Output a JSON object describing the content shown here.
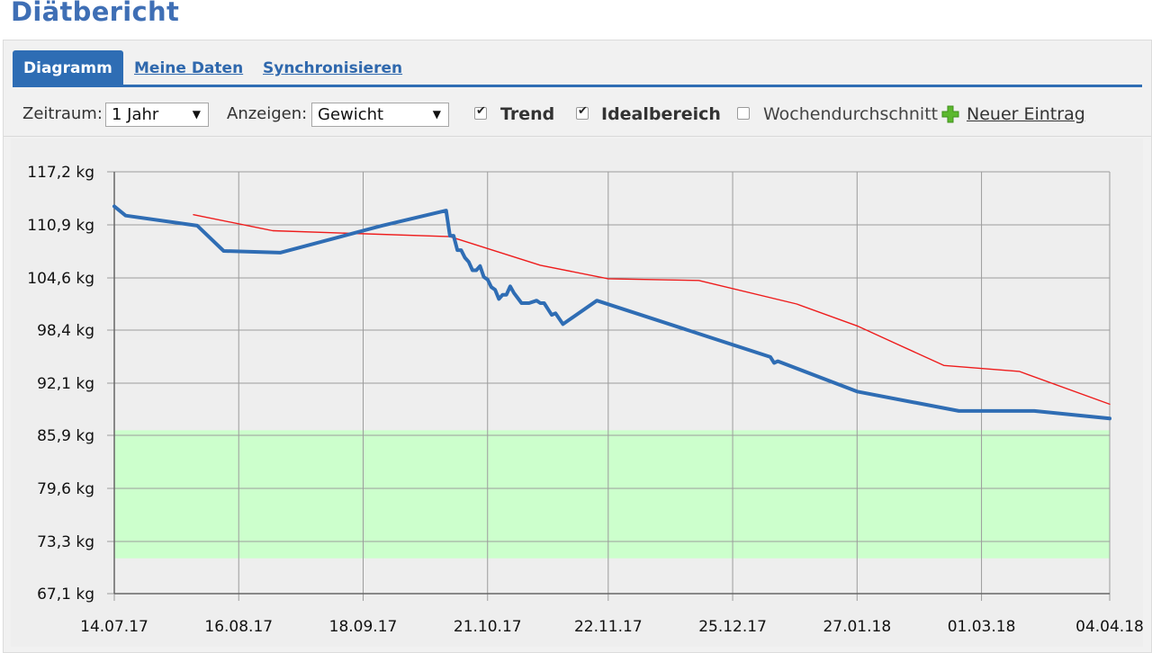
{
  "page": {
    "title": "Diätbericht"
  },
  "tabs": [
    {
      "label": "Diagramm",
      "active": true
    },
    {
      "label": "Meine Daten",
      "active": false
    },
    {
      "label": "Synchronisieren",
      "active": false
    }
  ],
  "toolbar": {
    "zeitraum_label": "Zeitraum:",
    "zeitraum_value": "1 Jahr",
    "anzeigen_label": "Anzeigen:",
    "anzeigen_value": "Gewicht",
    "trend": {
      "label": "Trend",
      "checked": true
    },
    "idealbereich": {
      "label": "Idealbereich",
      "checked": true
    },
    "wochendurchschnitt": {
      "label": "Wochendurchschnitt",
      "checked": false
    },
    "new_entry_label": "Neuer Eintrag",
    "new_entry_icon": "green-plus-icon"
  },
  "colors": {
    "accent": "#2e6db4",
    "weight_line": "#2f6db4",
    "trend_line": "#ee1c1c",
    "ideal_band": "#ccffcc",
    "plus_icon": "#5cb82e"
  },
  "chart_data": {
    "type": "line",
    "x_type": "date",
    "ylim": [
      67.1,
      117.2
    ],
    "xlim": [
      "2017-07-14",
      "2018-04-04"
    ],
    "yticks": [
      "67,1 kg",
      "73,3 kg",
      "79,6 kg",
      "85,9 kg",
      "92,1 kg",
      "98,4 kg",
      "104,6 kg",
      "110,9 kg",
      "117,2 kg"
    ],
    "ytick_values": [
      67.1,
      73.3,
      79.6,
      85.9,
      92.1,
      98.4,
      104.6,
      110.9,
      117.2
    ],
    "xticks": [
      "14.07.17",
      "16.08.17",
      "18.09.17",
      "21.10.17",
      "22.11.17",
      "25.12.17",
      "27.01.18",
      "01.03.18",
      "04.04.18"
    ],
    "xtick_dates": [
      "2017-07-14",
      "2017-08-16",
      "2017-09-18",
      "2017-10-21",
      "2017-11-22",
      "2017-12-25",
      "2018-01-27",
      "2018-03-01",
      "2018-04-04"
    ],
    "grid": true,
    "ideal_range": [
      71.3,
      86.5
    ],
    "series": [
      {
        "x": [
          "2017-07-14",
          "2017-07-17",
          "2017-08-05",
          "2017-08-12",
          "2017-08-27",
          "2017-09-23",
          "2017-10-10",
          "2017-10-11",
          "2017-10-12",
          "2017-10-13",
          "2017-10-14",
          "2017-10-15",
          "2017-10-16",
          "2017-10-17",
          "2017-10-18",
          "2017-10-19",
          "2017-10-20",
          "2017-10-21",
          "2017-10-22",
          "2017-10-23",
          "2017-10-24",
          "2017-10-25",
          "2017-10-26",
          "2017-10-27",
          "2017-10-28",
          "2017-10-30",
          "2017-11-01",
          "2017-11-03",
          "2017-11-04",
          "2017-11-05",
          "2017-11-06",
          "2017-11-07",
          "2017-11-08",
          "2017-11-10",
          "2017-11-19",
          "2018-01-04",
          "2018-01-05",
          "2018-01-06",
          "2018-01-27",
          "2018-02-23",
          "2018-03-15",
          "2018-04-04"
        ],
        "y": [
          113.1,
          112.0,
          110.8,
          107.8,
          107.6,
          110.8,
          112.6,
          109.6,
          109.6,
          107.9,
          107.9,
          107.0,
          106.5,
          105.5,
          105.5,
          106.0,
          104.7,
          104.4,
          103.5,
          103.2,
          102.1,
          102.6,
          102.6,
          103.6,
          102.8,
          101.6,
          101.6,
          101.9,
          101.6,
          101.6,
          100.9,
          100.2,
          100.4,
          99.1,
          101.9,
          95.2,
          94.5,
          94.7,
          91.1,
          88.8,
          88.8,
          87.9
        ]
      },
      {
        "x": [
          "2017-08-04",
          "2017-08-25",
          "2017-10-11",
          "2017-11-04",
          "2017-11-22",
          "2017-12-16",
          "2018-01-11",
          "2018-01-27",
          "2018-02-19",
          "2018-03-11",
          "2018-04-04"
        ],
        "y": [
          112.1,
          110.2,
          109.5,
          106.1,
          104.5,
          104.3,
          101.5,
          98.9,
          94.2,
          93.5,
          89.6
        ]
      }
    ]
  }
}
